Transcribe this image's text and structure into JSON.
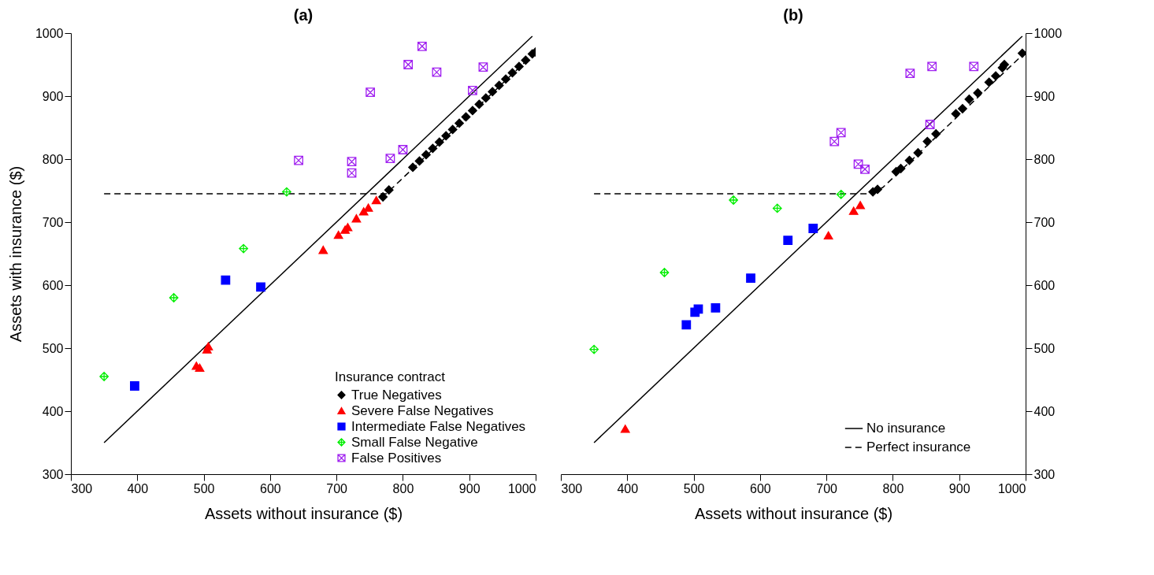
{
  "chart_data": [
    {
      "type": "scatter",
      "title": "(a)",
      "xlabel": "Assets without insurance ($)",
      "ylabel": "Assets with insurance ($)",
      "legend_title": "Insurance contract",
      "legend": "bottom right",
      "xlim": [
        300,
        1000
      ],
      "ylim": [
        300,
        1000
      ],
      "xticks": [
        300,
        400,
        500,
        600,
        700,
        800,
        900,
        1000
      ],
      "yticks": [
        300,
        400,
        500,
        600,
        700,
        800,
        900,
        1000
      ],
      "series": [
        {
          "type": "line",
          "color": "#000000",
          "line_style": "solid",
          "x": [
            350,
            995
          ],
          "values": [
            350,
            995
          ]
        },
        {
          "type": "line",
          "color": "#000000",
          "line_style": "dashed",
          "x": [
            350,
            775,
            1000
          ],
          "values": [
            745,
            745,
            970
          ]
        },
        {
          "name": "True Negatives",
          "color": "#000000",
          "marker": "diamond",
          "x": [
            770,
            779,
            815,
            825,
            835,
            845,
            855,
            865,
            875,
            885,
            895,
            905,
            915,
            925,
            935,
            945,
            955,
            965,
            975,
            985,
            995,
            1000
          ],
          "values": [
            740,
            751,
            787,
            797,
            807,
            817,
            827,
            837,
            847,
            857,
            867,
            877,
            887,
            897,
            907,
            917,
            927,
            937,
            947,
            957,
            967,
            970
          ]
        },
        {
          "name": "Severe False Negatives",
          "color": "#ff0000",
          "marker": "triangle",
          "x": [
            489,
            494,
            505,
            507,
            680,
            703,
            713,
            717,
            730,
            741,
            748,
            760
          ],
          "values": [
            472,
            469,
            498,
            503,
            656,
            680,
            688,
            692,
            706,
            717,
            723,
            735
          ]
        },
        {
          "name": "Intermediate False Negatives",
          "color": "#0000ff",
          "marker": "square",
          "x": [
            396,
            533,
            586
          ],
          "values": [
            440,
            608,
            597
          ]
        },
        {
          "name": "Small False Negative",
          "color": "#00ee00",
          "marker": "cross",
          "x": [
            350,
            455,
            560,
            625
          ],
          "values": [
            455,
            580,
            658,
            748
          ]
        },
        {
          "name": "False Positives",
          "color": "#a020f0",
          "marker": "cross",
          "x": [
            643,
            723,
            723,
            751,
            781,
            800,
            808,
            829,
            851,
            905,
            921
          ],
          "values": [
            798,
            796,
            778,
            906,
            801,
            815,
            950,
            979,
            938,
            909,
            946
          ]
        }
      ]
    },
    {
      "type": "scatter",
      "title": "(b)",
      "xlabel": "Assets without insurance ($)",
      "legend": "bottom right",
      "xlim": [
        300,
        1000
      ],
      "y2lim": [
        300,
        1000
      ],
      "xticks": [
        300,
        400,
        500,
        600,
        700,
        800,
        900,
        1000
      ],
      "y2ticks": [
        300,
        400,
        500,
        600,
        700,
        800,
        900,
        1000
      ],
      "series": [
        {
          "type": "line",
          "name": "No insurance",
          "axis": "y2",
          "color": "#000000",
          "line_style": "solid",
          "x": [
            350,
            995
          ],
          "values": [
            350,
            995
          ]
        },
        {
          "type": "line",
          "name": "Perfect insurance",
          "axis": "y2",
          "color": "#000000",
          "line_style": "dashed",
          "x": [
            350,
            765,
            775,
            785,
            1000
          ],
          "values": [
            745,
            745,
            750,
            755,
            970
          ]
        },
        {
          "axis": "y2",
          "color": "#000000",
          "marker": "diamond",
          "x": [
            770,
            777,
            805,
            812,
            825,
            838,
            852,
            865,
            895,
            905,
            915,
            928,
            945,
            955,
            965,
            968,
            995
          ],
          "values": [
            748,
            752,
            780,
            785,
            798,
            810,
            828,
            840,
            872,
            880,
            895,
            905,
            922,
            932,
            945,
            950,
            968
          ]
        },
        {
          "axis": "y2",
          "color": "#ff0000",
          "marker": "triangle",
          "x": [
            397,
            703,
            741,
            751
          ],
          "values": [
            372,
            679,
            718,
            727
          ]
        },
        {
          "axis": "y2",
          "color": "#0000ff",
          "marker": "square",
          "x": [
            489,
            502,
            507,
            533,
            586,
            642,
            680
          ],
          "values": [
            537,
            557,
            562,
            564,
            611,
            671,
            690
          ]
        },
        {
          "axis": "y2",
          "color": "#00ee00",
          "marker": "cross",
          "x": [
            350,
            456,
            560,
            626,
            722
          ],
          "values": [
            498,
            620,
            735,
            722,
            744
          ]
        },
        {
          "axis": "y2",
          "color": "#a020f0",
          "marker": "cross",
          "x": [
            712,
            722,
            748,
            758,
            826,
            859,
            856,
            922
          ],
          "values": [
            828,
            842,
            792,
            784,
            936,
            947,
            855,
            947
          ]
        }
      ]
    }
  ]
}
